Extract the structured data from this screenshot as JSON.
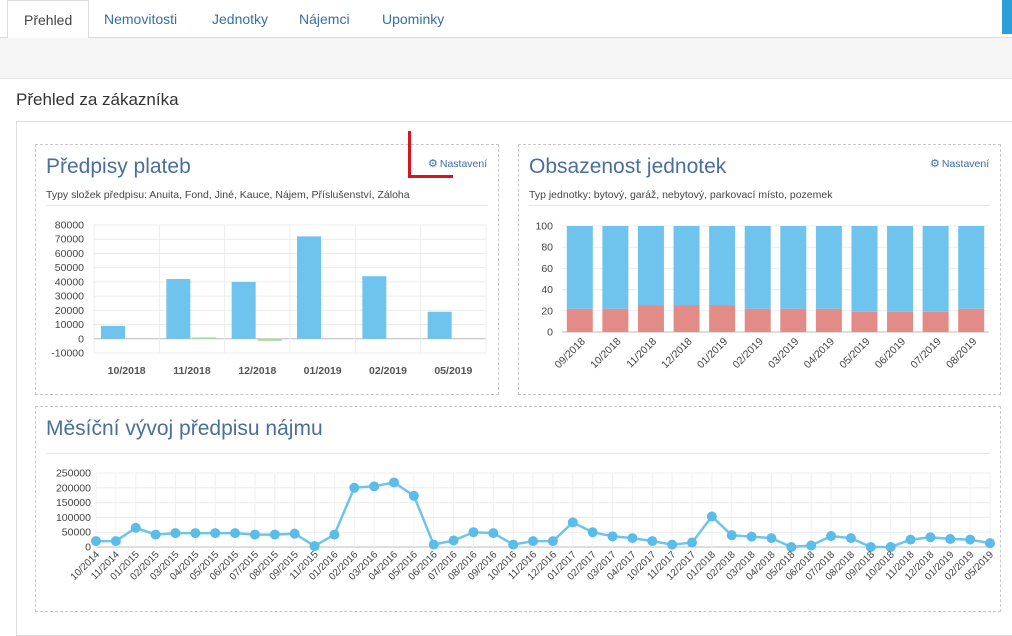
{
  "tabs": [
    {
      "label": "Přehled",
      "active": true
    },
    {
      "label": "Nemovitosti",
      "active": false
    },
    {
      "label": "Jednotky",
      "active": false
    },
    {
      "label": "Nájemci",
      "active": false
    },
    {
      "label": "Upominky",
      "active": false
    }
  ],
  "page": {
    "heading": "Přehled za zákazníka"
  },
  "colors": {
    "accent": "#3a6ea5",
    "bar_blue": "#6ec4ec",
    "bar_green": "#a8e0a0",
    "bar_red": "#e38b86",
    "marker": "#d9141b"
  },
  "panels": {
    "predpisy": {
      "title": "Předpisy plateb",
      "subtitle": "Typy složek předpisu: Anuita, Fond, Jiné, Kauce, Nájem, Příslušenství, Záloha",
      "settings_label": "Nastavení",
      "settings_icon": "gear-icon"
    },
    "obsazenost": {
      "title": "Obsazenost jednotek",
      "subtitle": "Typ jednotky: bytový, garáž, nebytový, parkovací místo, pozemek",
      "settings_label": "Nastavení",
      "settings_icon": "gear-icon"
    },
    "vyvoj": {
      "title": "Měsíční vývoj předpisu nájmu"
    }
  },
  "chart_data": [
    {
      "id": "predpisy",
      "type": "bar",
      "categories": [
        "10/2018",
        "11/2018",
        "12/2018",
        "01/2019",
        "02/2019",
        "05/2019"
      ],
      "series": [
        {
          "values": [
            9000,
            42000,
            40000,
            72000,
            44000,
            19000
          ]
        },
        {
          "values": [
            0,
            1000,
            -1500,
            0,
            0,
            0
          ]
        }
      ],
      "ylim": [
        -10000,
        80000
      ],
      "yticks": [
        80000,
        70000,
        60000,
        50000,
        40000,
        30000,
        20000,
        10000,
        0,
        -10000
      ],
      "grid": true
    },
    {
      "id": "obsazenost",
      "type": "bar",
      "stacked": true,
      "categories": [
        "09/2018",
        "10/2018",
        "11/2018",
        "12/2018",
        "01/2019",
        "02/2019",
        "03/2019",
        "04/2019",
        "05/2019",
        "06/2019",
        "07/2019",
        "08/2019"
      ],
      "series": [
        {
          "values": [
            22,
            22,
            25,
            25,
            25,
            22,
            22,
            22,
            19,
            19,
            19,
            22
          ]
        },
        {
          "values": [
            78,
            78,
            75,
            75,
            75,
            78,
            78,
            78,
            81,
            81,
            81,
            78
          ]
        }
      ],
      "ylim": [
        0,
        100
      ],
      "yticks": [
        100,
        80,
        60,
        40,
        20,
        0
      ],
      "grid": true
    },
    {
      "id": "vyvoj",
      "type": "line",
      "x": [
        "10/2014",
        "11/2014",
        "01/2015",
        "02/2015",
        "03/2015",
        "04/2015",
        "05/2015",
        "06/2015",
        "07/2015",
        "08/2015",
        "09/2015",
        "11/2015",
        "01/2016",
        "02/2016",
        "03/2016",
        "04/2016",
        "05/2016",
        "06/2016",
        "07/2016",
        "08/2016",
        "09/2016",
        "10/2016",
        "11/2016",
        "12/2016",
        "01/2017",
        "02/2017",
        "03/2017",
        "04/2017",
        "10/2017",
        "11/2017",
        "12/2017",
        "01/2018",
        "02/2018",
        "03/2018",
        "04/2018",
        "05/2018",
        "06/2018",
        "07/2018",
        "08/2018",
        "09/2018",
        "10/2018",
        "11/2018",
        "12/2018",
        "01/2019",
        "02/2019",
        "05/2019"
      ],
      "values": [
        20000,
        20000,
        65000,
        42000,
        47000,
        47000,
        47000,
        47000,
        42000,
        42000,
        45000,
        3000,
        42000,
        200000,
        205000,
        218000,
        173000,
        8000,
        22000,
        50000,
        47000,
        8000,
        20000,
        20000,
        83000,
        50000,
        36000,
        30000,
        20000,
        8000,
        15000,
        103000,
        40000,
        35000,
        30000,
        0,
        5000,
        37000,
        30000,
        0,
        0,
        25000,
        33000,
        27000,
        25000,
        13000
      ],
      "ylim": [
        0,
        250000
      ],
      "yticks": [
        250000,
        200000,
        150000,
        100000,
        50000,
        0
      ],
      "grid": true
    }
  ]
}
